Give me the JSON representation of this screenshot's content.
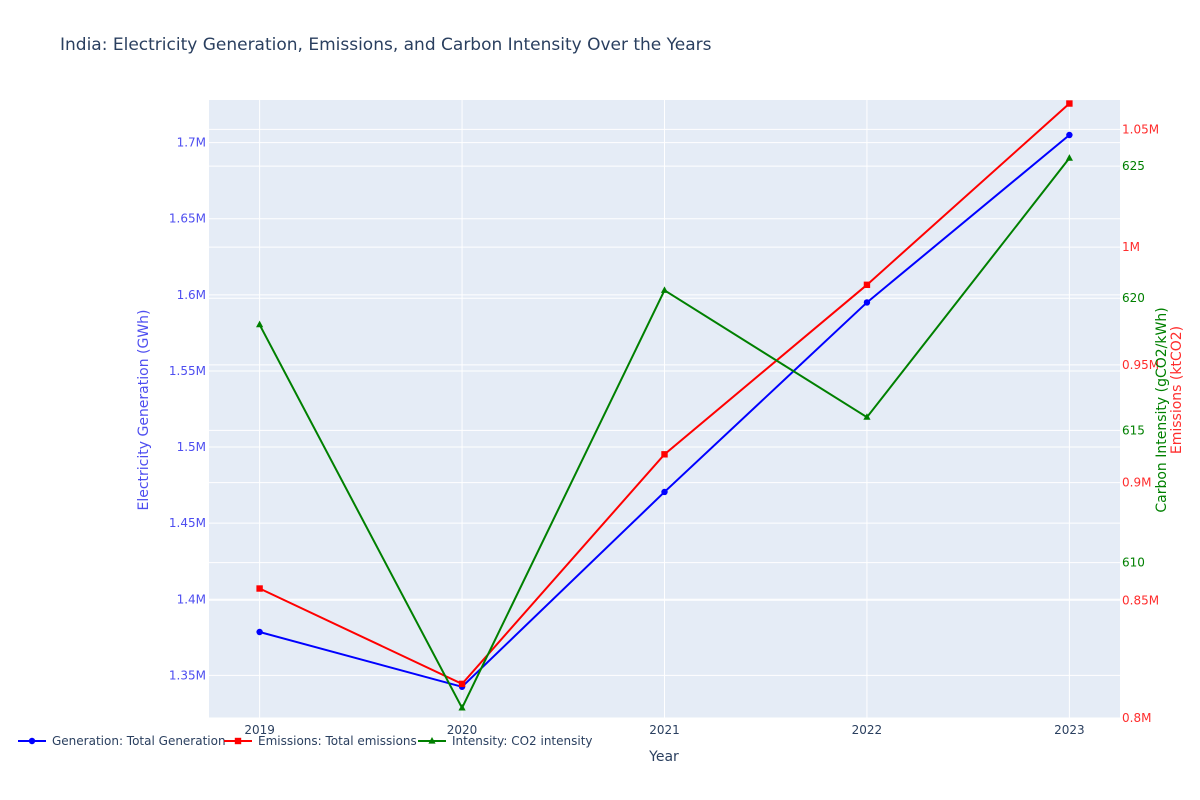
{
  "chart_data": {
    "type": "line",
    "title": "India: Electricity Generation, Emissions, and Carbon Intensity Over the Years",
    "xlabel": "Year",
    "x": [
      2019,
      2020,
      2021,
      2022,
      2023
    ],
    "x_tick_labels": [
      "2019",
      "2020",
      "2021",
      "2022",
      "2023"
    ],
    "x_range": [
      2018.75,
      2023.25
    ],
    "grid": true,
    "legend_position": "bottom-left",
    "axes": {
      "y_left": {
        "label": "Electricity Generation (GWh)",
        "range": [
          1322000,
          1728000
        ],
        "ticks": [
          1350000,
          1400000,
          1450000,
          1500000,
          1550000,
          1600000,
          1650000,
          1700000
        ],
        "tick_labels": [
          "1.35M",
          "1.4M",
          "1.45M",
          "1.5M",
          "1.55M",
          "1.6M",
          "1.65M",
          "1.7M"
        ],
        "color": "#4e4ef0"
      },
      "y_right_emissions": {
        "label": "Emissions (ktCO2)",
        "range": [
          800000,
          1062500
        ],
        "ticks": [
          800000,
          850000,
          900000,
          950000,
          1000000,
          1050000
        ],
        "tick_labels": [
          "0.8M",
          "0.85M",
          "0.9M",
          "0.95M",
          "1M",
          "1.05M"
        ],
        "color": "#ff2d2d"
      },
      "y_right_intensity": {
        "label": "Carbon Intensity (gCO2/kWh)",
        "range": [
          604.12,
          627.5
        ],
        "ticks": [
          610,
          615,
          620,
          625
        ],
        "tick_labels": [
          "610",
          "615",
          "620",
          "625"
        ],
        "color": "#008000"
      }
    },
    "series": [
      {
        "name": "Generation: Total Generation",
        "axis": "y_left",
        "color": "#0000ff",
        "marker": "circle",
        "values": [
          1378500,
          1342500,
          1470500,
          1595000,
          1705000
        ]
      },
      {
        "name": "Emissions: Total emissions",
        "axis": "y_right_emissions",
        "color": "#ff0000",
        "marker": "square",
        "values": [
          855000,
          814500,
          912000,
          984000,
          1061000
        ]
      },
      {
        "name": "Intensity: CO2 intensity",
        "axis": "y_right_intensity",
        "color": "#008000",
        "marker": "triangle-up",
        "values": [
          619.0,
          604.5,
          620.3,
          615.5,
          625.3
        ]
      }
    ]
  }
}
